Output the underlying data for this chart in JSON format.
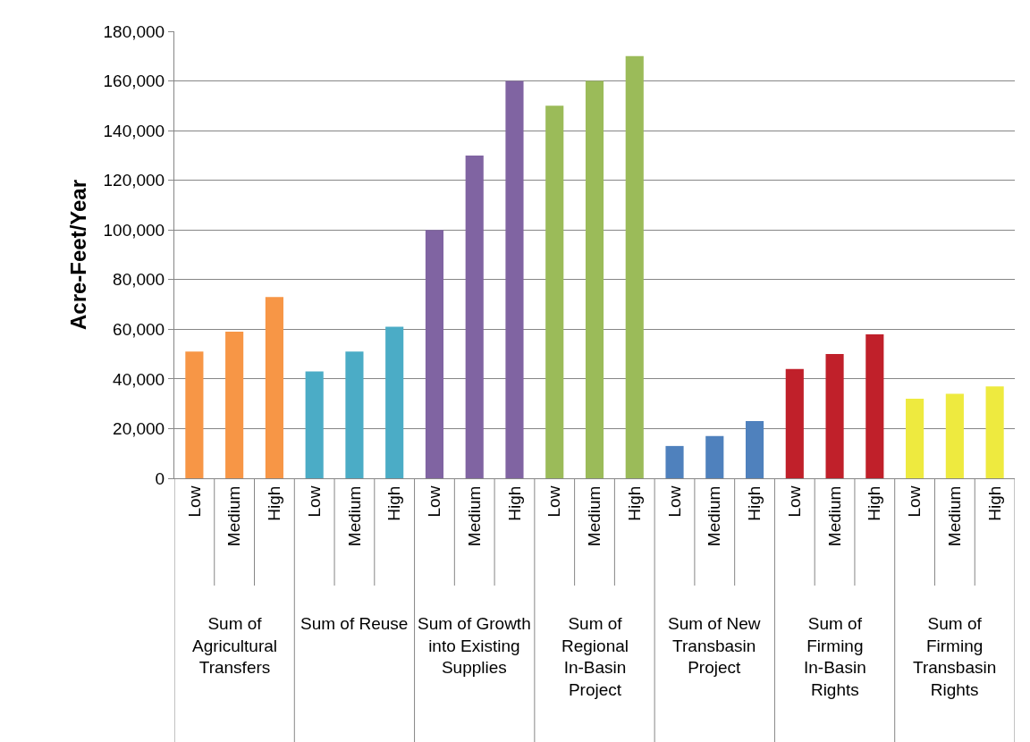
{
  "chart_data": {
    "type": "bar",
    "ylabel": "Acre-Feet/Year",
    "categories": [
      "Low",
      "Medium",
      "High",
      "Low",
      "Medium",
      "High",
      "Low",
      "Medium",
      "High",
      "Low",
      "Medium",
      "High",
      "Low",
      "Medium",
      "High",
      "Low",
      "Medium",
      "High",
      "Low",
      "Medium",
      "High"
    ],
    "values": [
      51000,
      59000,
      73000,
      43000,
      51000,
      61000,
      100000,
      130000,
      160000,
      150000,
      160000,
      170000,
      13000,
      17000,
      23000,
      44000,
      50000,
      58000,
      32000,
      34000,
      37000
    ],
    "colors": [
      "#f79646",
      "#f79646",
      "#f79646",
      "#4bacc6",
      "#4bacc6",
      "#4bacc6",
      "#8064a2",
      "#8064a2",
      "#8064a2",
      "#9bbb59",
      "#9bbb59",
      "#9bbb59",
      "#4f81bd",
      "#4f81bd",
      "#4f81bd",
      "#c0202a",
      "#c0202a",
      "#c0202a",
      "#eeea3f",
      "#eeea3f",
      "#eeea3f"
    ],
    "annotations": [
      "Sum of Agricultural Transfers",
      "Sum of Reuse",
      "Sum of Growth into Existing Supplies",
      "Sum of Regional In-Basin Project",
      "Sum of New Transbasin Project",
      "Sum of Firming In-Basin Rights",
      "Sum of Firming Transbasin Rights"
    ],
    "ylim": [
      0,
      180000
    ],
    "yticks": [
      0,
      {
        "value": 20000,
        "label": "20,000"
      },
      {
        "value": 40000,
        "label": "40,000"
      },
      {
        "value": 60000,
        "label": "60,000"
      },
      {
        "value": 80000,
        "label": "80,000"
      },
      {
        "value": 100000,
        "label": "100,000"
      },
      {
        "value": 120000,
        "label": "120,000"
      },
      {
        "value": 140000,
        "label": "140,000"
      },
      {
        "value": 160000,
        "label": "160,000"
      },
      {
        "value": 180000,
        "label": "180,000"
      }
    ],
    "grid": "y"
  }
}
